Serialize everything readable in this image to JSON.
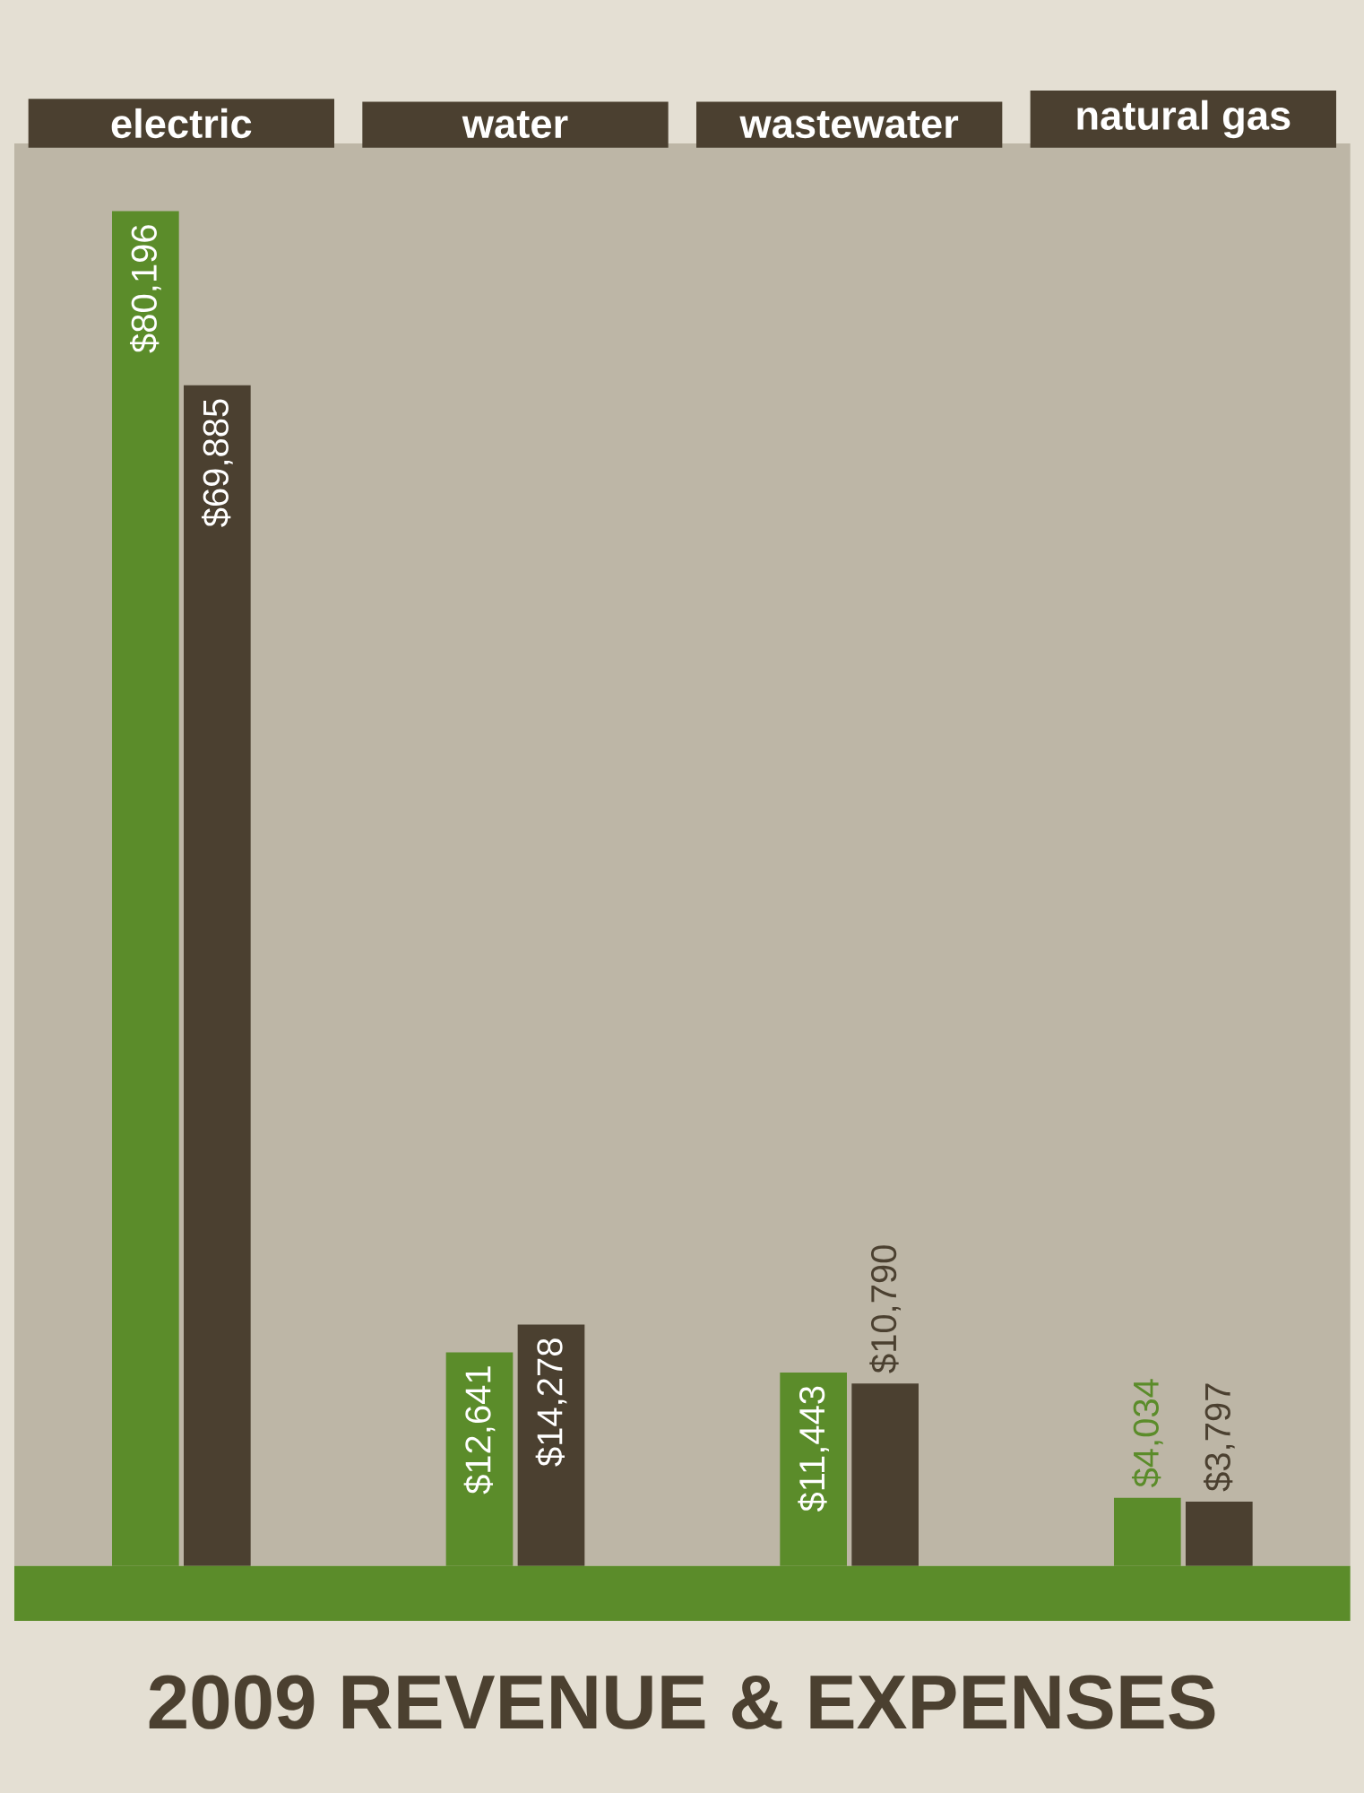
{
  "chart_data": {
    "type": "bar",
    "title": "2009 REVENUE & EXPENSES",
    "categories": [
      "electric",
      "water",
      "wastewater",
      "natural gas"
    ],
    "series": [
      {
        "color": "#5b8c2a",
        "values": [
          80196,
          12641,
          11443,
          4034
        ],
        "value_labels": [
          "$80,196",
          "$12,641",
          "$11,443",
          "$4,034"
        ]
      },
      {
        "color": "#4b4030",
        "values": [
          69885,
          14278,
          10790,
          3797
        ],
        "value_labels": [
          "$69,885",
          "$14,278",
          "$10,790",
          "$3,797"
        ]
      }
    ]
  }
}
